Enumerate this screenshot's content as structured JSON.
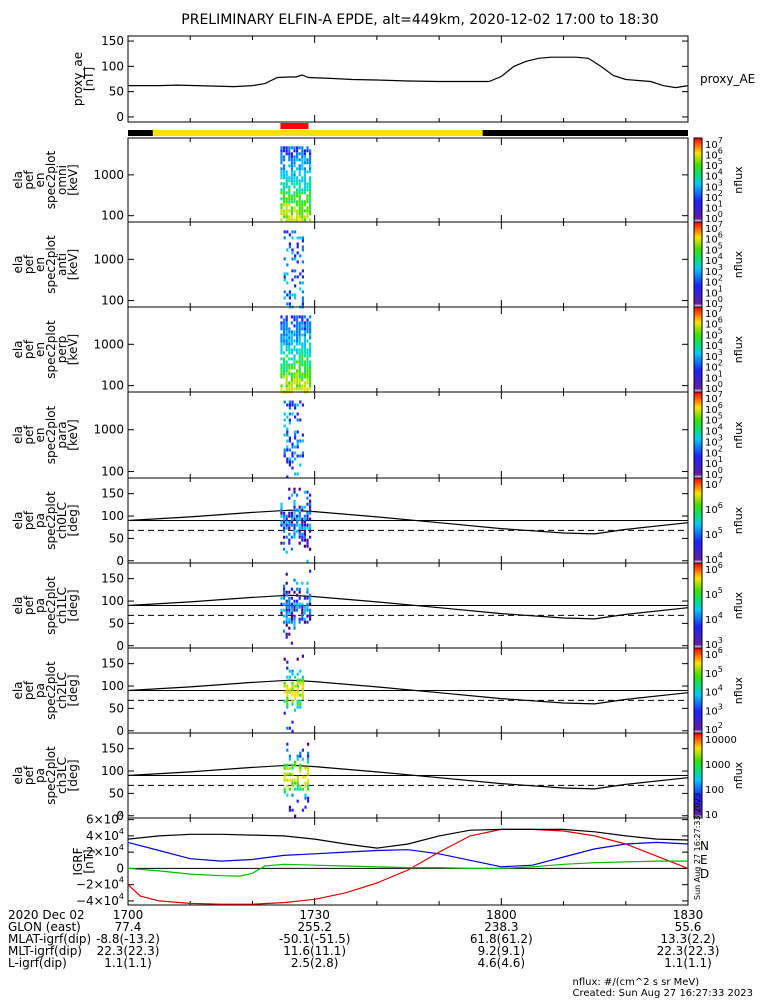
{
  "title": "PRELIMINARY ELFIN-A EPDE, alt=449km, 2020-12-02 17:00 to 18:30",
  "side_stamp": "Sun Aug 27 16:27:33 2023",
  "colors": {
    "line": "#000000",
    "ae": "#000000",
    "north": "#0000dd",
    "east": "#dd0000",
    "down": "#00bb00",
    "bar_black": "#000000",
    "bar_yellow": "#ffe000",
    "bar_red": "#ff0000"
  },
  "chart_data": [
    {
      "id": "ae",
      "type": "line",
      "ylabel_lines": [
        "proxy_ae",
        "[nT]"
      ],
      "yticks": [
        "150",
        "100",
        "50",
        "0"
      ],
      "ylim": [
        -10,
        160
      ],
      "legend": "proxy_AE",
      "x": [
        0,
        2,
        5,
        8,
        11,
        14,
        17,
        20,
        22,
        24,
        26,
        27,
        28,
        29,
        31,
        33,
        36,
        40,
        45,
        50,
        55,
        58,
        60,
        61,
        62,
        64,
        66,
        68,
        70,
        72,
        74,
        76,
        78,
        80,
        82,
        84,
        86,
        88,
        90
      ],
      "values": [
        62,
        62,
        62,
        63,
        62,
        61,
        60,
        62,
        66,
        78,
        79,
        79,
        83,
        78,
        77,
        76,
        74,
        73,
        71,
        70,
        70,
        70,
        80,
        90,
        100,
        110,
        116,
        118,
        118,
        118,
        116,
        100,
        82,
        74,
        72,
        70,
        62,
        58,
        62
      ]
    },
    {
      "id": "bar",
      "type": "timeline",
      "segments": [
        {
          "from": 0,
          "to": 4,
          "color": "bar_black"
        },
        {
          "from": 4,
          "to": 57,
          "color": "bar_yellow"
        },
        {
          "from": 57,
          "to": 90,
          "color": "bar_black"
        },
        {
          "from": 24.5,
          "to": 29,
          "color": "bar_red",
          "row": "upper"
        }
      ]
    },
    {
      "id": "omni",
      "type": "heatmap",
      "ylog": true,
      "ylabel_lines": [
        "ela",
        "pef",
        "en",
        "spec2plot",
        "omni",
        "[keV]"
      ],
      "yticks": [
        "1000",
        "100"
      ],
      "ytick_values": [
        1000,
        100
      ],
      "ylim": [
        70,
        8000
      ],
      "cbar": {
        "labels": [
          "10",
          "10",
          "10",
          "10",
          "10",
          "10",
          "10",
          "10"
        ],
        "exps": [
          "7",
          "6",
          "5",
          "4",
          "3",
          "2",
          "1",
          "0"
        ],
        "unit": "nflux"
      },
      "x_range": [
        24.5,
        29.5
      ],
      "intensity": "high"
    },
    {
      "id": "anti",
      "type": "heatmap",
      "ylog": true,
      "ylabel_lines": [
        "ela",
        "pef",
        "en",
        "spec2plot",
        "anti",
        "[keV]"
      ],
      "yticks": [
        "1000",
        "100"
      ],
      "ytick_values": [
        1000,
        100
      ],
      "ylim": [
        70,
        8000
      ],
      "cbar": {
        "labels": [
          "10",
          "10",
          "10",
          "10",
          "10",
          "10",
          "10",
          "10"
        ],
        "exps": [
          "7",
          "6",
          "5",
          "4",
          "3",
          "2",
          "1",
          "0"
        ],
        "unit": "nflux"
      },
      "x_range": [
        25,
        28
      ],
      "intensity": "low"
    },
    {
      "id": "perp",
      "type": "heatmap",
      "ylog": true,
      "ylabel_lines": [
        "ela",
        "pef",
        "en",
        "spec2plot",
        "perp",
        "[keV]"
      ],
      "yticks": [
        "1000",
        "100"
      ],
      "ytick_values": [
        1000,
        100
      ],
      "ylim": [
        70,
        8000
      ],
      "cbar": {
        "labels": [
          "10",
          "10",
          "10",
          "10",
          "10",
          "10",
          "10",
          "10"
        ],
        "exps": [
          "7",
          "6",
          "5",
          "4",
          "3",
          "2",
          "1",
          "0"
        ],
        "unit": "nflux"
      },
      "x_range": [
        24.5,
        29.5
      ],
      "intensity": "high"
    },
    {
      "id": "para",
      "type": "heatmap",
      "ylog": true,
      "ylabel_lines": [
        "ela",
        "pef",
        "en",
        "spec2plot",
        "para",
        "[keV]"
      ],
      "yticks": [
        "1000",
        "100"
      ],
      "ytick_values": [
        1000,
        100
      ],
      "ylim": [
        70,
        8000
      ],
      "cbar": {
        "labels": [
          "10",
          "10",
          "10",
          "10",
          "10",
          "10",
          "10",
          "10"
        ],
        "exps": [
          "7",
          "6",
          "5",
          "4",
          "3",
          "2",
          "1",
          "0"
        ],
        "unit": "nflux"
      },
      "x_range": [
        25,
        28
      ],
      "intensity": "low"
    },
    {
      "id": "ch0",
      "type": "heatmap",
      "ylabel_lines": [
        "ela",
        "pef",
        "pa",
        "spec2plot",
        "ch0LC",
        "[deg]"
      ],
      "yticks": [
        "150",
        "100",
        "50",
        "0"
      ],
      "ytick_values": [
        150,
        100,
        50,
        0
      ],
      "ylim": [
        -5,
        185
      ],
      "cbar": {
        "labels": [
          "10",
          "10",
          "10",
          "10"
        ],
        "exps": [
          "7",
          "6",
          "5",
          "4"
        ],
        "unit": "nflux"
      },
      "x_range": [
        24.5,
        29.5
      ],
      "intensity": "dark"
    },
    {
      "id": "ch1",
      "type": "heatmap",
      "ylabel_lines": [
        "ela",
        "pef",
        "pa",
        "spec2plot",
        "ch1LC",
        "[deg]"
      ],
      "yticks": [
        "150",
        "100",
        "50",
        "0"
      ],
      "ytick_values": [
        150,
        100,
        50,
        0
      ],
      "ylim": [
        -5,
        185
      ],
      "cbar": {
        "labels": [
          "10",
          "10",
          "10",
          "10"
        ],
        "exps": [
          "6",
          "5",
          "4",
          "3"
        ],
        "unit": "nflux"
      },
      "x_range": [
        24.5,
        29.5
      ],
      "intensity": "dark"
    },
    {
      "id": "ch2",
      "type": "heatmap",
      "ylabel_lines": [
        "ela",
        "pef",
        "pa",
        "spec2plot",
        "ch2LC",
        "[deg]"
      ],
      "yticks": [
        "150",
        "100",
        "50",
        "0"
      ],
      "ytick_values": [
        150,
        100,
        50,
        0
      ],
      "ylim": [
        -5,
        185
      ],
      "cbar": {
        "labels": [
          "10",
          "10",
          "10",
          "10",
          "10"
        ],
        "exps": [
          "6",
          "5",
          "4",
          "3",
          "2"
        ],
        "unit": "nflux"
      },
      "x_range": [
        25,
        28
      ],
      "intensity": "mid"
    },
    {
      "id": "ch3",
      "type": "heatmap",
      "ylabel_lines": [
        "ela",
        "pef",
        "pa",
        "spec2plot",
        "ch3LC",
        "[deg]"
      ],
      "yticks": [
        "150",
        "100",
        "50",
        "0"
      ],
      "ytick_values": [
        150,
        100,
        50,
        0
      ],
      "ylim": [
        -5,
        185
      ],
      "cbar": {
        "labels": [
          "10000",
          "1000",
          "100",
          "10"
        ],
        "exps": [
          "",
          "",
          "",
          ""
        ],
        "unit": "nflux"
      },
      "x_range": [
        25,
        29
      ],
      "intensity": "mid"
    },
    {
      "id": "igrf",
      "type": "line",
      "ylabel_lines": [
        "IGRF",
        "[nT]"
      ],
      "yticks": [
        "6×10",
        "4×10",
        "2×10",
        "0",
        "−2×10",
        "−4×10"
      ],
      "ytick_exps": [
        "4",
        "4",
        "4",
        "",
        "4",
        "4"
      ],
      "ytick_values": [
        60000,
        40000,
        20000,
        0,
        -20000,
        -40000
      ],
      "ylim": [
        -45000,
        62000
      ],
      "legend": [
        "N",
        "E",
        "D"
      ],
      "series": [
        {
          "name": "N",
          "color": "north",
          "x": [
            0,
            5,
            10,
            15,
            20,
            25,
            30,
            35,
            40,
            45,
            50,
            55,
            60,
            65,
            70,
            75,
            80,
            85,
            90
          ],
          "values": [
            32000,
            22000,
            12000,
            9000,
            11000,
            16000,
            18000,
            20000,
            22000,
            23000,
            18000,
            10000,
            2000,
            4000,
            14000,
            24000,
            30000,
            32000,
            30000
          ]
        },
        {
          "name": "E",
          "color": "east",
          "x": [
            0,
            2,
            5,
            10,
            15,
            20,
            25,
            30,
            35,
            40,
            45,
            50,
            55,
            60,
            65,
            70,
            75,
            80,
            85,
            90
          ],
          "values": [
            -20000,
            -34000,
            -40000,
            -43000,
            -44000,
            -44000,
            -42000,
            -38000,
            -30000,
            -18000,
            -2000,
            20000,
            40000,
            48000,
            48000,
            46000,
            40000,
            30000,
            15000,
            0
          ]
        },
        {
          "name": "D",
          "color": "down",
          "x": [
            0,
            5,
            10,
            15,
            18,
            20,
            22,
            25,
            30,
            35,
            40,
            45,
            50,
            55,
            60,
            65,
            70,
            75,
            80,
            85,
            90
          ],
          "values": [
            0,
            -3000,
            -7000,
            -9000,
            -9500,
            -6000,
            3000,
            5000,
            4000,
            3000,
            2000,
            1000,
            1000,
            0,
            0,
            2000,
            5000,
            7000,
            8000,
            9000,
            9000
          ]
        },
        {
          "name": "",
          "color": "line",
          "x": [
            0,
            5,
            10,
            15,
            20,
            25,
            30,
            35,
            40,
            45,
            50,
            55,
            60,
            65,
            70,
            75,
            80,
            85,
            90
          ],
          "values": [
            36000,
            40000,
            42000,
            42000,
            41000,
            40000,
            36000,
            30000,
            25000,
            30000,
            40000,
            47000,
            48000,
            48000,
            48000,
            45000,
            40000,
            36000,
            35000
          ]
        }
      ]
    }
  ],
  "pa_overlay": {
    "solid": {
      "x": [
        0,
        10,
        20,
        26,
        30,
        40,
        50,
        60,
        70,
        75,
        80,
        90
      ],
      "values": [
        90,
        98,
        108,
        113,
        110,
        98,
        85,
        72,
        62,
        60,
        70,
        85
      ]
    },
    "dashed": 68,
    "hline": 90
  },
  "footer": {
    "rows": [
      {
        "label": "2020 Dec 02",
        "cells": [
          "1700",
          "1730",
          "1800",
          "1830"
        ]
      },
      {
        "label": "GLON (east)",
        "cells": [
          "77.4",
          "255.2",
          "238.3",
          "55.6"
        ]
      },
      {
        "label": "MLAT-igrf(dip)",
        "cells": [
          "-8.8(-13.2)",
          "-50.1(-51.5)",
          "61.8(61.2)",
          "13.3(2.2)"
        ]
      },
      {
        "label": "MLT-igrf(dip)",
        "cells": [
          "22.3(22.3)",
          "11.6(11.1)",
          "9.2(9.1)",
          "22.3(22.3)"
        ]
      },
      {
        "label": "L-igrf(dip)",
        "cells": [
          "1.1(1.1)",
          "2.5(2.8)",
          "4.6(4.6)",
          "1.1(1.1)"
        ]
      }
    ],
    "credits": [
      "nflux: #/(cm^2 s sr MeV)",
      "Created: Sun Aug 27 16:27:33 2023"
    ]
  }
}
